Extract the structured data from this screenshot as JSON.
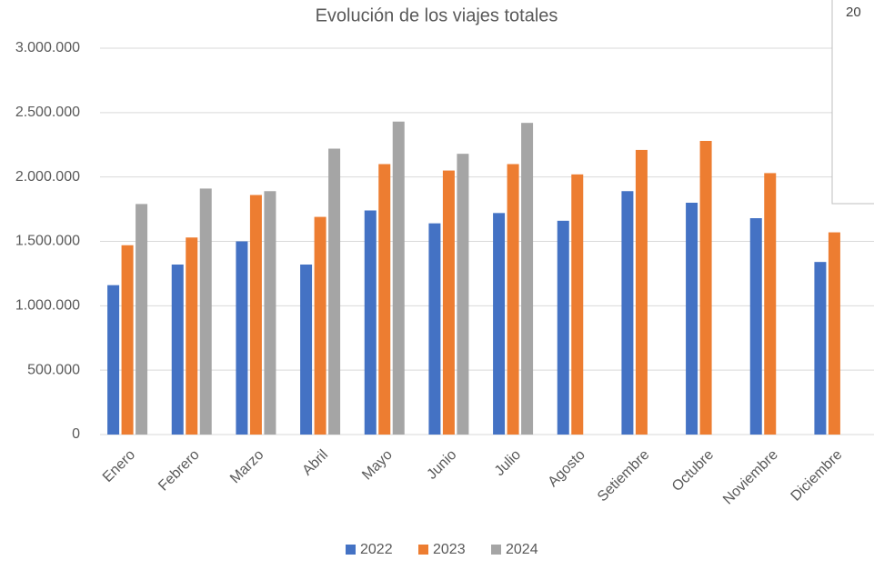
{
  "chart_data": {
    "type": "bar",
    "title": "Evolución de los viajes totales",
    "categories": [
      "Enero",
      "Febrero",
      "Marzo",
      "Abril",
      "Mayo",
      "Junio",
      "Julio",
      "Agosto",
      "Setiembre",
      "Octubre",
      "Noviembre",
      "Diciembre"
    ],
    "series": [
      {
        "name": "2022",
        "color": "#4472c4",
        "values": [
          1160000,
          1320000,
          1500000,
          1320000,
          1740000,
          1640000,
          1720000,
          1660000,
          1890000,
          1800000,
          1680000,
          1340000
        ]
      },
      {
        "name": "2023",
        "color": "#ed7d31",
        "values": [
          1470000,
          1530000,
          1860000,
          1690000,
          2100000,
          2050000,
          2100000,
          2020000,
          2210000,
          2280000,
          2030000,
          1570000
        ]
      },
      {
        "name": "2024",
        "color": "#a5a5a5",
        "values": [
          1790000,
          1910000,
          1890000,
          2220000,
          2430000,
          2180000,
          2420000,
          null,
          null,
          null,
          null,
          null
        ]
      }
    ],
    "ylim": [
      0,
      3000000
    ],
    "yticks": [
      0,
      {
        "value": 500000,
        "label": "500.000"
      },
      {
        "value": 1000000,
        "label": "1.000.000"
      },
      {
        "value": 1500000,
        "label": "1.500.000"
      },
      {
        "value": 2000000,
        "label": "2.000.000"
      },
      {
        "value": 2500000,
        "label": "2.500.000"
      },
      {
        "value": 3000000,
        "label": "3.000.000"
      }
    ],
    "grid": true,
    "legend": "bottom",
    "overlay_text": "20"
  }
}
